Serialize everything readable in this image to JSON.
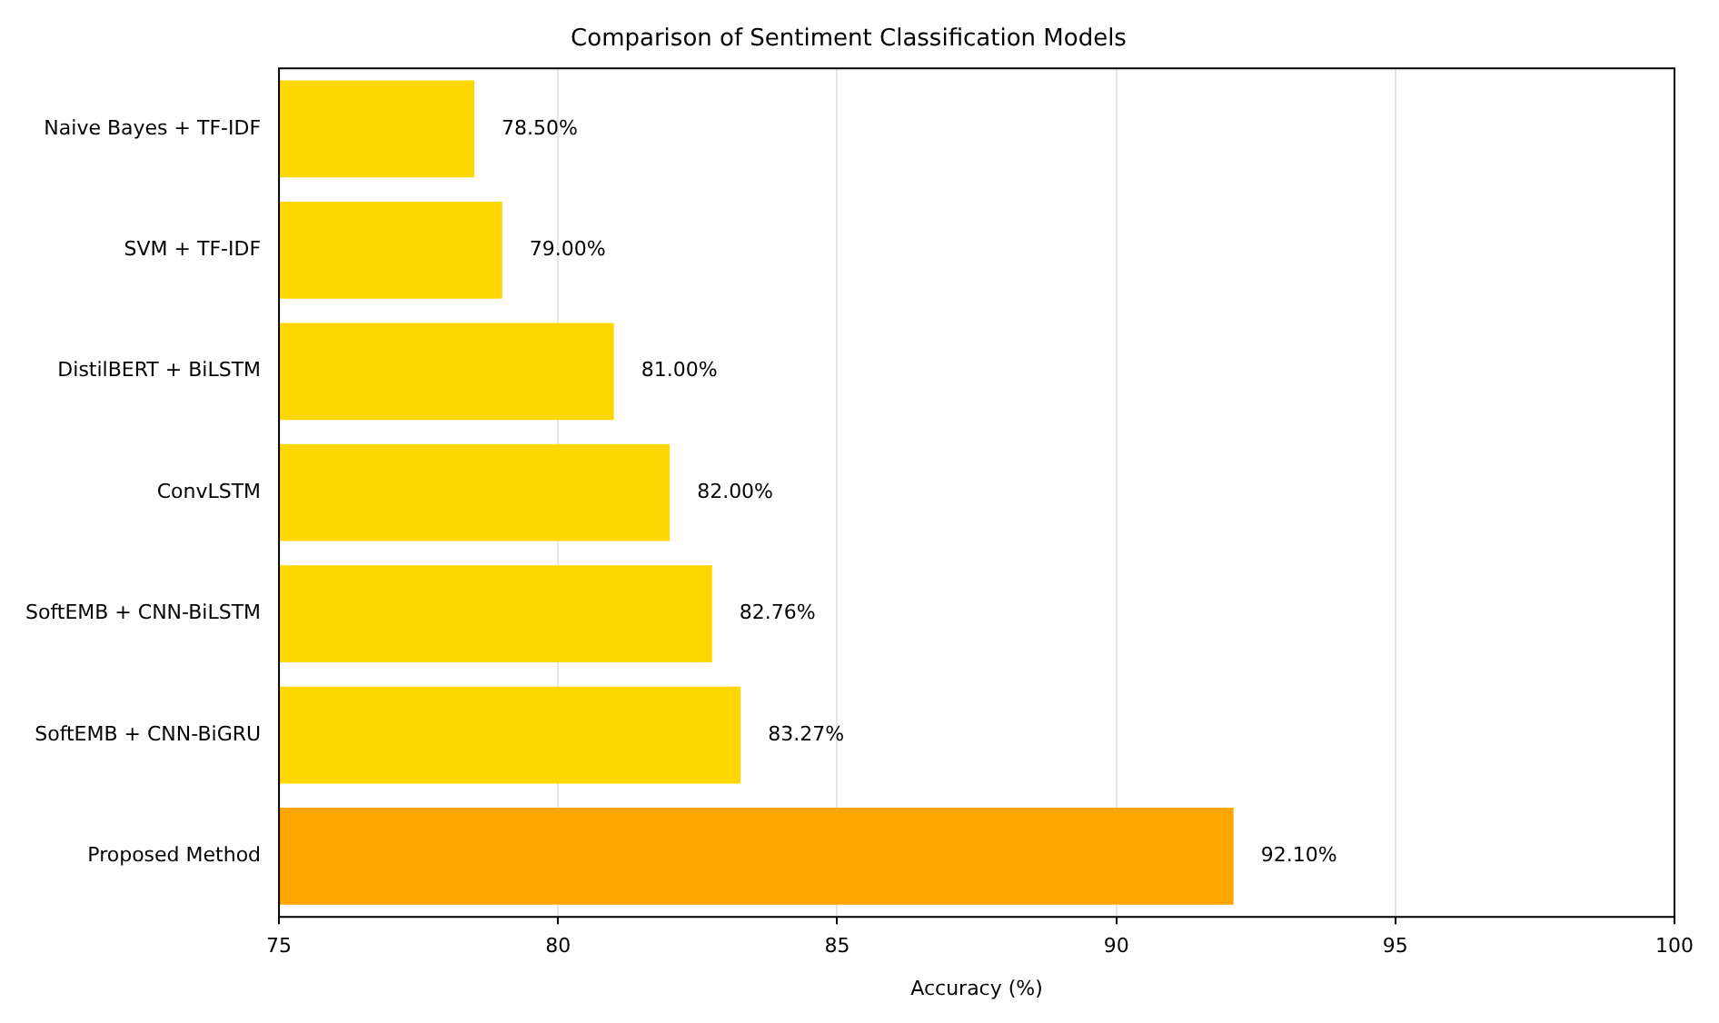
{
  "chart_data": {
    "type": "bar",
    "orientation": "horizontal",
    "title": "Comparison of Sentiment Classification Models",
    "xlabel": "Accuracy (%)",
    "categories": [
      "Naive Bayes + TF-IDF",
      "SVM + TF-IDF",
      "DistilBERT + BiLSTM",
      "ConvLSTM",
      "SoftEMB + CNN-BiLSTM",
      "SoftEMB + CNN-BiGRU",
      "Proposed Method"
    ],
    "values": [
      78.5,
      79,
      81,
      82,
      82.76,
      83.27,
      92.1
    ],
    "colors": [
      "#ffd700",
      "#ffd700",
      "#ffd700",
      "#ffd700",
      "#ffd700",
      "#ffd700",
      "#ffa500"
    ],
    "value_labels": [
      "78.50%",
      "79.00%",
      "81.00%",
      "82.00%",
      "82.76%",
      "83.27%",
      "92.10%"
    ],
    "xlim": [
      75,
      100
    ],
    "xticks": [
      75,
      80,
      85,
      90,
      95,
      100
    ],
    "grid": "x"
  }
}
